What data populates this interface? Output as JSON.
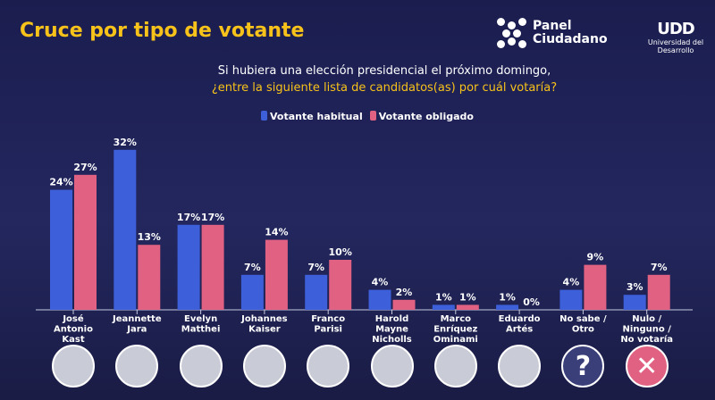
{
  "header": {
    "title": "Cruce por tipo de votante",
    "logo_panel": "Panel Ciudadano",
    "logo_udd_mark": "UDD",
    "logo_udd_sub": "Universidad del Desarrollo"
  },
  "question": {
    "line1": "Si hubiera una elección presidencial el próximo domingo,",
    "line2": "¿entre la siguiente lista de candidatos(as) por cuál votaría?"
  },
  "colors": {
    "background": "#1f2257",
    "title": "#f7c21a",
    "habitual": "#3d5fd9",
    "obligado": "#e06182"
  },
  "chart_data": {
    "type": "bar",
    "categories": [
      "José Antonio Kast",
      "Jeannette Jara",
      "Evelyn Matthei",
      "Johannes Kaiser",
      "Franco Parisi",
      "Harold Mayne Nicholls",
      "Marco Enríquez Ominami",
      "Eduardo Artés",
      "No sabe / Otro",
      "Nulo / Ninguno / No votaría"
    ],
    "category_lines": [
      [
        "José",
        "Antonio",
        "Kast"
      ],
      [
        "Jeannette",
        "Jara"
      ],
      [
        "Evelyn",
        "Matthei"
      ],
      [
        "Johannes",
        "Kaiser"
      ],
      [
        "Franco",
        "Parisi"
      ],
      [
        "Harold",
        "Mayne",
        "Nicholls"
      ],
      [
        "Marco",
        "Enríquez",
        "Ominami"
      ],
      [
        "Eduardo",
        "Artés"
      ],
      [
        "No sabe /",
        "Otro"
      ],
      [
        "Nulo /",
        "Ninguno /",
        "No votaría"
      ]
    ],
    "series": [
      {
        "name": "Votante habitual",
        "values": [
          24,
          32,
          17,
          7,
          7,
          4,
          1,
          1,
          4,
          3
        ]
      },
      {
        "name": "Votante obligado",
        "values": [
          27,
          13,
          17,
          14,
          10,
          2,
          1,
          0,
          9,
          7
        ]
      }
    ],
    "unit": "%",
    "legend": "top-center",
    "grid": false,
    "ylim": [
      0,
      32
    ]
  },
  "icons": [
    "photo-kast",
    "photo-jara",
    "photo-matthei",
    "photo-kaiser",
    "photo-parisi",
    "photo-mayne-nicholls",
    "photo-enriquez-ominami",
    "photo-artes",
    "question-mark-icon",
    "x-mark-icon"
  ]
}
